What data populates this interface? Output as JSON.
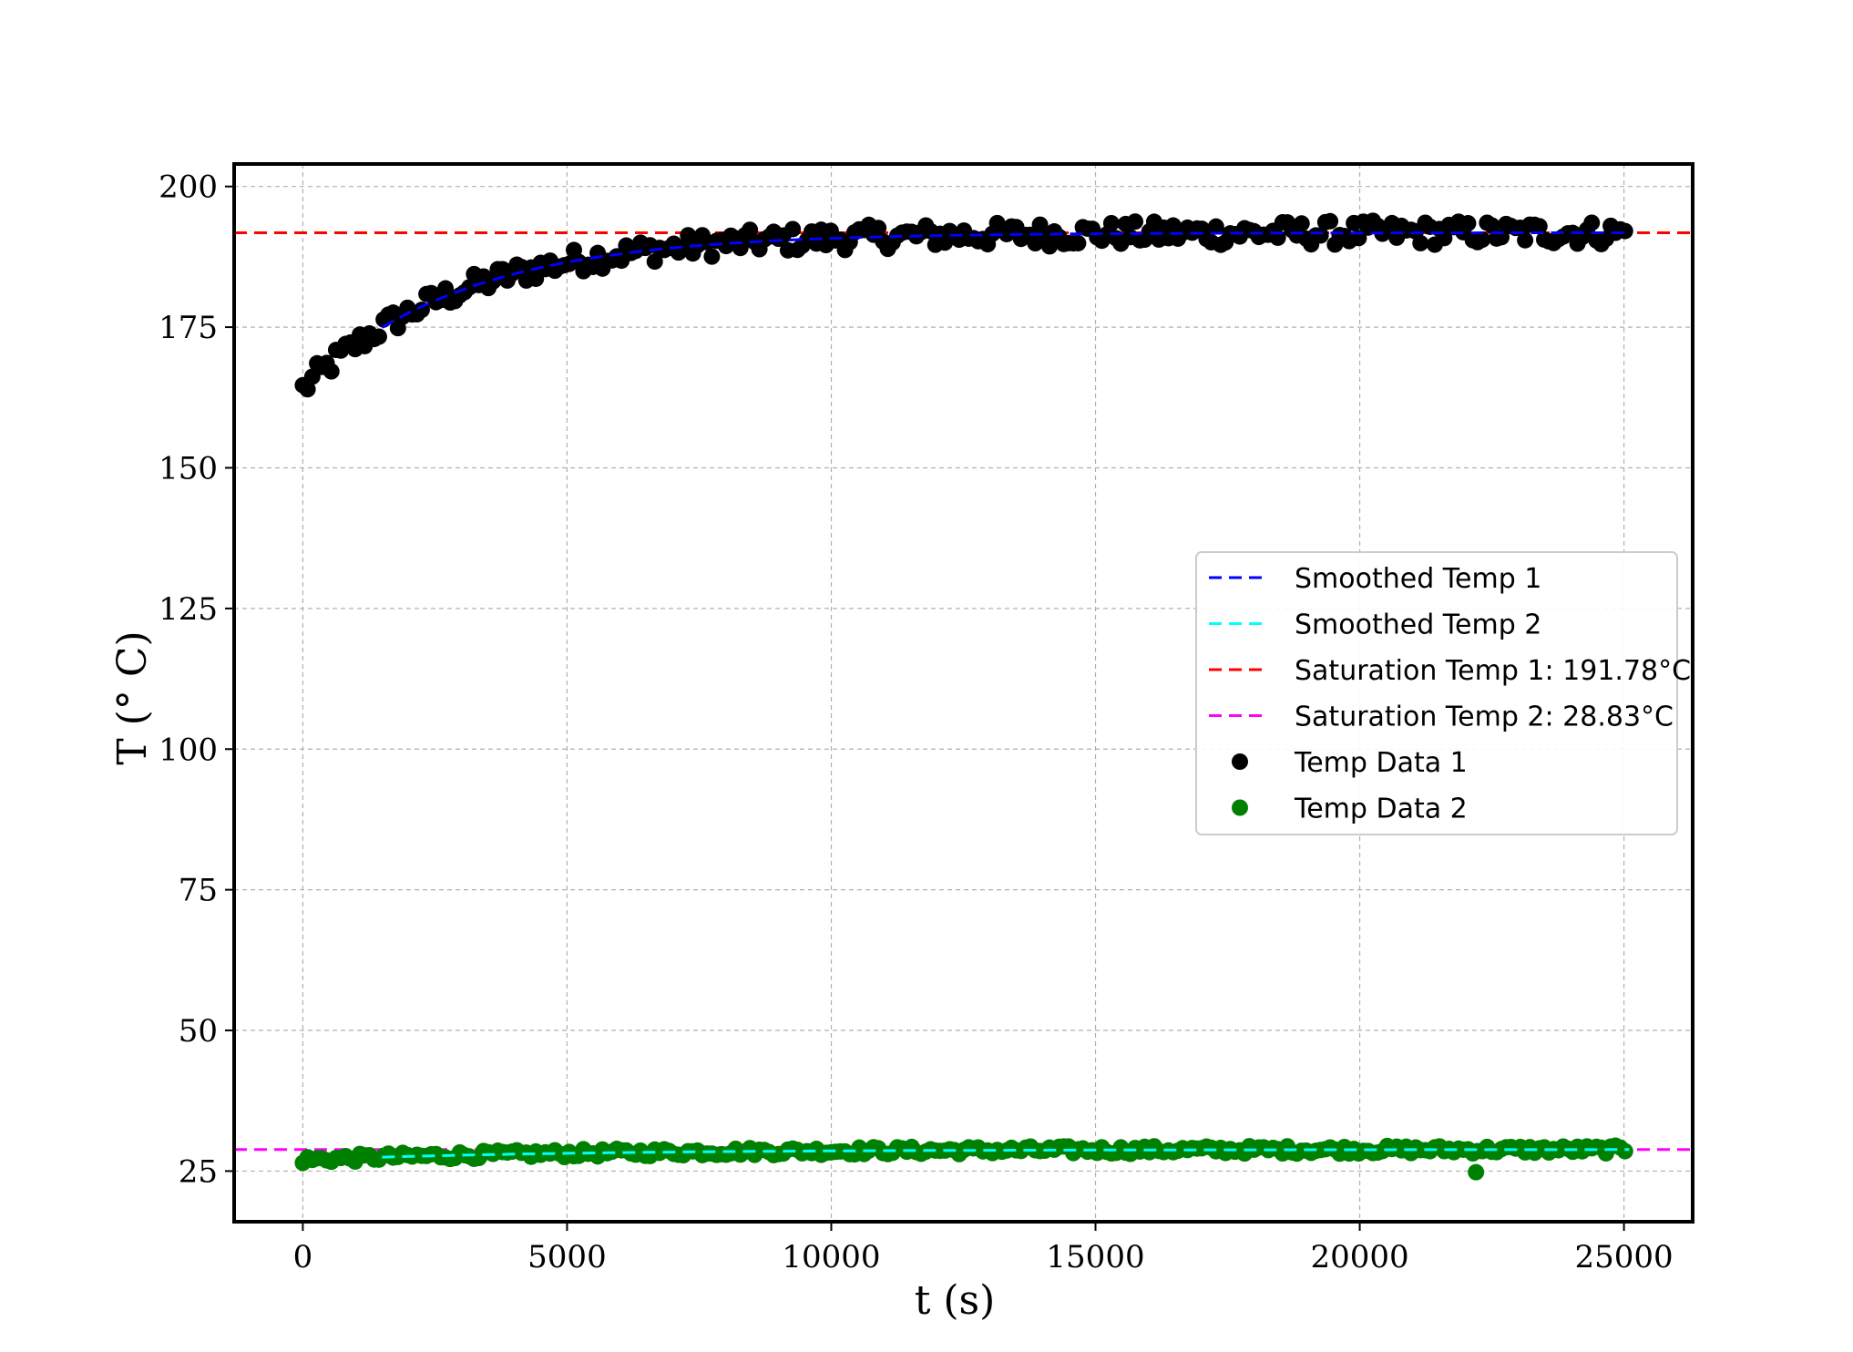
{
  "chart_data": {
    "type": "scatter",
    "title": "",
    "xlabel": "t (s)",
    "ylabel": "T (° C)",
    "xlim": [
      -1300,
      26300
    ],
    "ylim": [
      16,
      204
    ],
    "x_ticks": [
      0,
      5000,
      10000,
      15000,
      20000,
      25000
    ],
    "y_ticks": [
      25,
      50,
      75,
      100,
      125,
      150,
      175,
      200
    ],
    "grid": true,
    "legend_position": "center-right",
    "colors": {
      "smoothed1": "#0000ff",
      "smoothed2": "#00ffff",
      "saturation1": "#ff0000",
      "saturation2": "#ff00ff",
      "data1": "#000000",
      "data2": "#008000"
    },
    "saturation_temp_1": 191.78,
    "saturation_temp_2": 28.83,
    "scatter_series": [
      {
        "name": "Temp Data 1",
        "model": {
          "start": 164,
          "end": 191.78,
          "tau": 3000,
          "noise": 2.2
        },
        "x_range": [
          0,
          25100
        ],
        "step": 90
      },
      {
        "name": "Temp Data 2",
        "model": {
          "start": 27,
          "end": 28.83,
          "tau": 5000,
          "noise": 0.7
        },
        "x_range": [
          0,
          25100
        ],
        "step": 90,
        "outlier": {
          "x": 22200,
          "y": 24.8
        }
      }
    ],
    "legend": [
      {
        "label": "Smoothed Temp 1",
        "kind": "line",
        "color": "#0000ff"
      },
      {
        "label": "Smoothed Temp 2",
        "kind": "line",
        "color": "#00ffff"
      },
      {
        "label": "Saturation Temp 1: 191.78°C",
        "kind": "line",
        "color": "#ff0000"
      },
      {
        "label": "Saturation Temp 2: 28.83°C",
        "kind": "line",
        "color": "#ff00ff"
      },
      {
        "label": "Temp Data 1",
        "kind": "marker",
        "color": "#000000"
      },
      {
        "label": "Temp Data 2",
        "kind": "marker",
        "color": "#008000"
      }
    ]
  }
}
